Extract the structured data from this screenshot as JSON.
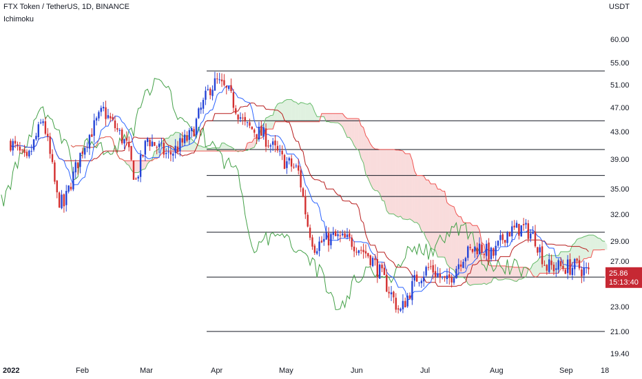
{
  "header": {
    "title": "FTX Token / TetherUS, 1D, BINANCE",
    "indicator": "Ichimoku",
    "currency": "USDT"
  },
  "price_tag": {
    "value": "25.86",
    "countdown": "15:13:40",
    "color": "#c62833"
  },
  "colors": {
    "bull": "#2443d6",
    "bear": "#d32f2f",
    "tenkan": "#2962ff",
    "kijun": "#b71c1c",
    "chikou": "#43a047",
    "cloud_bull": "#a5d6a7",
    "cloud_bear": "#ef9a9a",
    "hline": "#131722"
  },
  "chart_data": {
    "type": "candlestick",
    "title": "FTX Token / TetherUS, 1D, BINANCE",
    "indicator": "Ichimoku",
    "x_ticks": [
      "2022",
      "Feb",
      "Mar",
      "Apr",
      "May",
      "Jun",
      "Jul",
      "Aug",
      "Sep",
      "18"
    ],
    "y_ticks": [
      "60.00",
      "55.00",
      "51.00",
      "47.00",
      "43.00",
      "39.00",
      "35.00",
      "32.00",
      "29.00",
      "27.00",
      "23.00",
      "21.00",
      "19.40"
    ],
    "y_scale": "log",
    "ylim": [
      19.4,
      62
    ],
    "horizontal_levels": [
      53.5,
      44.8,
      40.4,
      36.8,
      34.1,
      30.0,
      25.6,
      21.0
    ],
    "last_price": 25.86,
    "candles": [
      {
        "date": "2022-01-01",
        "close": 41.5
      },
      {
        "date": "2022-01-08",
        "close": 38.5
      },
      {
        "date": "2022-01-15",
        "close": 45.0
      },
      {
        "date": "2022-01-21",
        "close": 34.0
      },
      {
        "date": "2022-01-24",
        "close": 33.0
      },
      {
        "date": "2022-02-01",
        "close": 40.5
      },
      {
        "date": "2022-02-10",
        "close": 46.5
      },
      {
        "date": "2022-02-20",
        "close": 41.0
      },
      {
        "date": "2022-02-24",
        "close": 36.0
      },
      {
        "date": "2022-03-01",
        "close": 42.0
      },
      {
        "date": "2022-03-10",
        "close": 39.5
      },
      {
        "date": "2022-03-20",
        "close": 42.5
      },
      {
        "date": "2022-03-28",
        "close": 50.5
      },
      {
        "date": "2022-03-31",
        "close": 51.5
      },
      {
        "date": "2022-04-05",
        "close": 49.5
      },
      {
        "date": "2022-04-12",
        "close": 44.0
      },
      {
        "date": "2022-04-20",
        "close": 42.5
      },
      {
        "date": "2022-04-28",
        "close": 39.0
      },
      {
        "date": "2022-05-05",
        "close": 37.5
      },
      {
        "date": "2022-05-09",
        "close": 31.0
      },
      {
        "date": "2022-05-12",
        "close": 28.5
      },
      {
        "date": "2022-05-20",
        "close": 29.5
      },
      {
        "date": "2022-05-28",
        "close": 29.0
      },
      {
        "date": "2022-06-05",
        "close": 27.5
      },
      {
        "date": "2022-06-12",
        "close": 25.0
      },
      {
        "date": "2022-06-18",
        "close": 22.5
      },
      {
        "date": "2022-06-25",
        "close": 25.5
      },
      {
        "date": "2022-07-01",
        "close": 26.5
      },
      {
        "date": "2022-07-08",
        "close": 25.0
      },
      {
        "date": "2022-07-15",
        "close": 27.5
      },
      {
        "date": "2022-07-22",
        "close": 28.5
      },
      {
        "date": "2022-07-28",
        "close": 27.5
      },
      {
        "date": "2022-08-03",
        "close": 30.0
      },
      {
        "date": "2022-08-10",
        "close": 30.5
      },
      {
        "date": "2022-08-15",
        "close": 29.5
      },
      {
        "date": "2022-08-20",
        "close": 26.5
      },
      {
        "date": "2022-08-27",
        "close": 26.5
      },
      {
        "date": "2022-09-03",
        "close": 26.5
      },
      {
        "date": "2022-09-08",
        "close": 25.86
      }
    ]
  }
}
